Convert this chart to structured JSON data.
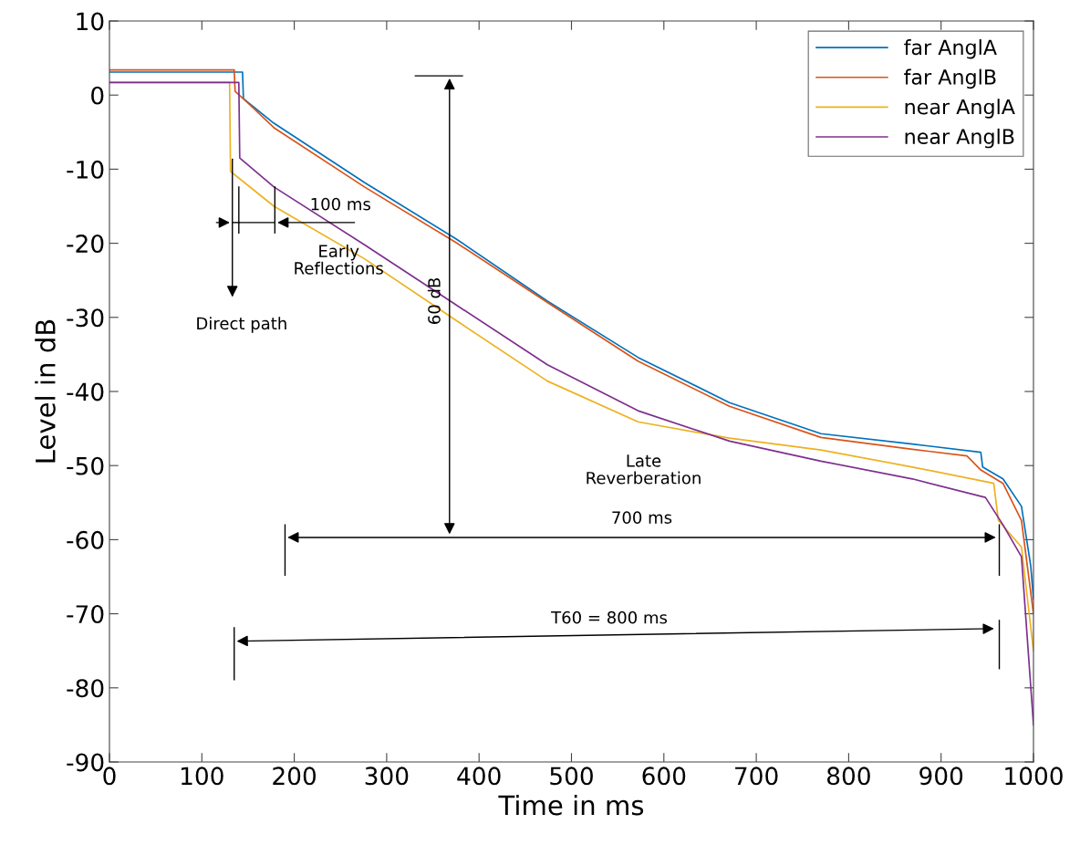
{
  "chart_data": {
    "type": "line",
    "xlabel": "Time in ms",
    "ylabel": "Level in dB",
    "xlim": [
      0,
      1000
    ],
    "ylim": [
      -90,
      10
    ],
    "xticks": [
      0,
      100,
      200,
      300,
      400,
      500,
      600,
      700,
      800,
      900,
      1000
    ],
    "yticks": [
      -90,
      -80,
      -70,
      -60,
      -50,
      -40,
      -30,
      -20,
      -10,
      0,
      10
    ],
    "grid": false,
    "legend": "top right",
    "marker": "none",
    "line_style": "solid",
    "series": [
      {
        "name": "far AnglA",
        "color": "#0072bd",
        "x": [
          0,
          144,
          145,
          178,
          276,
          375,
          474,
          572,
          671,
          770,
          869,
          943,
          945,
          967,
          987,
          997,
          1000
        ],
        "values": [
          3.1,
          3.1,
          -0.5,
          -3.8,
          -11.8,
          -19.4,
          -27.8,
          -35.4,
          -41.5,
          -45.7,
          -47.1,
          -48.2,
          -50.2,
          -51.8,
          -55.5,
          -63.5,
          -68
        ]
      },
      {
        "name": "far AnglB",
        "color": "#d95319",
        "x": [
          0,
          135,
          136,
          145,
          178,
          276,
          375,
          474,
          572,
          671,
          770,
          869,
          928,
          943,
          967,
          987,
          1000
        ],
        "values": [
          3.4,
          3.4,
          0.5,
          -0.5,
          -4.4,
          -12.4,
          -19.9,
          -28,
          -35.9,
          -42,
          -46.2,
          -47.8,
          -48.7,
          -50.6,
          -52.4,
          -57.4,
          -70
        ]
      },
      {
        "name": "near AnglA",
        "color": "#edb120",
        "x": [
          0,
          130,
          131,
          178,
          276,
          375,
          474,
          572,
          671,
          770,
          869,
          957,
          962,
          987,
          1000
        ],
        "values": [
          1.7,
          1.7,
          -10.3,
          -15,
          -22.1,
          -30.4,
          -38.6,
          -44.1,
          -46.3,
          -47.9,
          -50.2,
          -52.4,
          -57.4,
          -61,
          -75
        ]
      },
      {
        "name": "near AnglB",
        "color": "#7e2f8e",
        "x": [
          0,
          140,
          141,
          178,
          276,
          375,
          474,
          572,
          671,
          770,
          869,
          948,
          967,
          987,
          1000
        ],
        "values": [
          1.7,
          1.7,
          -8.5,
          -12.4,
          -20.2,
          -28.3,
          -36.4,
          -42.6,
          -46.7,
          -49.4,
          -51.8,
          -54.3,
          -58,
          -62.3,
          -85
        ]
      }
    ],
    "annotations": [
      "100 ms",
      "Early\nReflections",
      "Direct path",
      "60 dB",
      "Late\nReverberation",
      "700 ms",
      "T60 = 800 ms"
    ]
  }
}
